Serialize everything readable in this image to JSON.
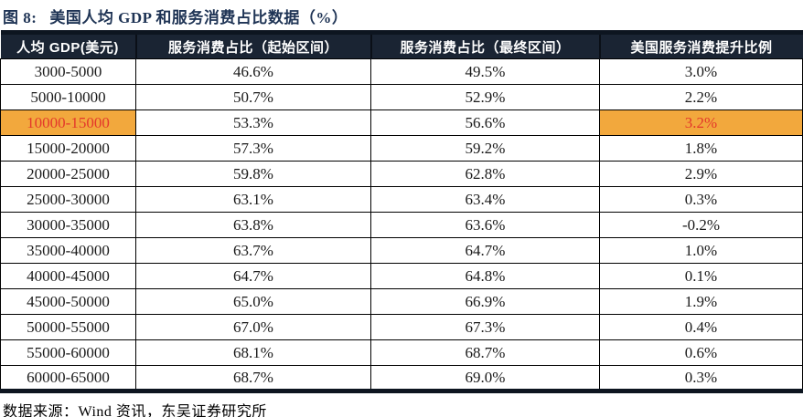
{
  "title": {
    "label": "图 8:",
    "text": "美国人均 GDP 和服务消费占比数据（%）"
  },
  "table": {
    "columns": [
      "人均 GDP(美元)",
      "服务消费占比（起始区间）",
      "服务消费占比（最终区间）",
      "美国服务消费提升比例"
    ],
    "rows": [
      {
        "gdp": "3000-5000",
        "start": "46.6%",
        "end": "49.5%",
        "lift": "3.0%",
        "highlight": false
      },
      {
        "gdp": "5000-10000",
        "start": "50.7%",
        "end": "52.9%",
        "lift": "2.2%",
        "highlight": false
      },
      {
        "gdp": "10000-15000",
        "start": "53.3%",
        "end": "56.6%",
        "lift": "3.2%",
        "highlight": true
      },
      {
        "gdp": "15000-20000",
        "start": "57.3%",
        "end": "59.2%",
        "lift": "1.8%",
        "highlight": false
      },
      {
        "gdp": "20000-25000",
        "start": "59.8%",
        "end": "62.8%",
        "lift": "2.9%",
        "highlight": false
      },
      {
        "gdp": "25000-30000",
        "start": "63.1%",
        "end": "63.4%",
        "lift": "0.3%",
        "highlight": false
      },
      {
        "gdp": "30000-35000",
        "start": "63.8%",
        "end": "63.6%",
        "lift": "-0.2%",
        "highlight": false
      },
      {
        "gdp": "35000-40000",
        "start": "63.7%",
        "end": "64.7%",
        "lift": "1.0%",
        "highlight": false
      },
      {
        "gdp": "40000-45000",
        "start": "64.7%",
        "end": "64.8%",
        "lift": "0.1%",
        "highlight": false
      },
      {
        "gdp": "45000-50000",
        "start": "65.0%",
        "end": "66.9%",
        "lift": "1.9%",
        "highlight": false
      },
      {
        "gdp": "50000-55000",
        "start": "67.0%",
        "end": "67.3%",
        "lift": "0.4%",
        "highlight": false
      },
      {
        "gdp": "55000-60000",
        "start": "68.1%",
        "end": "68.7%",
        "lift": "0.6%",
        "highlight": false
      },
      {
        "gdp": "60000-65000",
        "start": "68.7%",
        "end": "69.0%",
        "lift": "0.3%",
        "highlight": false
      }
    ]
  },
  "footer": {
    "source_text": "数据来源：Wind 资讯，东吴证券研究所"
  },
  "colors": {
    "header_bg": "#1a2433",
    "header_text": "#ffffff",
    "title_text": "#1f3455",
    "highlight_bg": "#f2a83d",
    "highlight_text": "#e4382b",
    "border_thick": "#0d1520",
    "border_thin": "#000000"
  }
}
